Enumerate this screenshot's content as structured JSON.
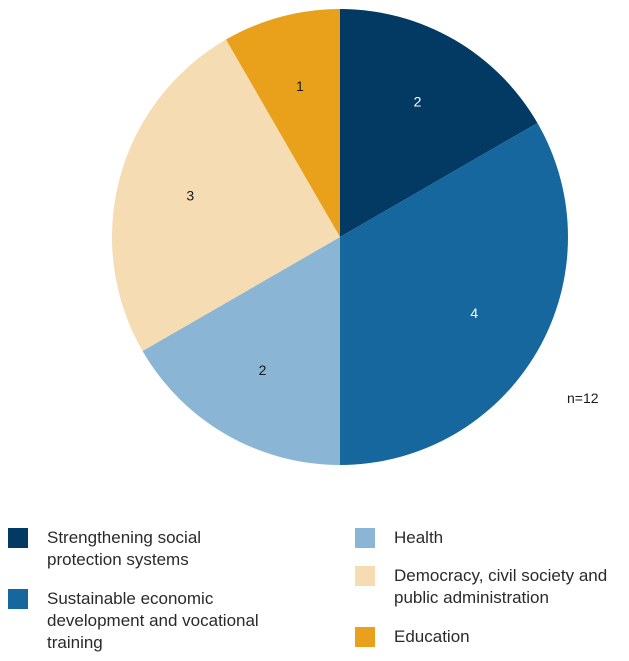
{
  "chart_data": {
    "type": "pie",
    "note": "n=12",
    "slices": [
      {
        "label": "Strengthening social protection systems",
        "value": 2,
        "color": "#023a64"
      },
      {
        "label": "Sustainable economic development and vocational training",
        "value": 4,
        "color": "#16679e"
      },
      {
        "label": "Health",
        "value": 2,
        "color": "#8ab5d4"
      },
      {
        "label": "Democracy, civil society and public administration",
        "value": 3,
        "color": "#f6dcb2"
      },
      {
        "label": "Education",
        "value": 1,
        "color": "#e9a11b"
      }
    ]
  }
}
